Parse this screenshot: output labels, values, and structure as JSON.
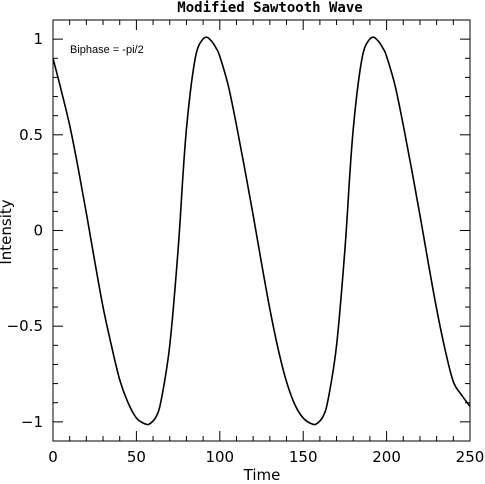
{
  "chart_data": {
    "type": "line",
    "title": "Modified Sawtooth Wave",
    "xlabel": "Time",
    "ylabel": "Intensity",
    "xlim": [
      0,
      250
    ],
    "ylim": [
      -1.1,
      1.1
    ],
    "xticks": [
      0,
      50,
      100,
      150,
      200,
      250
    ],
    "xtick_labels": [
      "0",
      "50",
      "100",
      "150",
      "200",
      "250"
    ],
    "yticks": [
      1,
      0.5,
      0,
      -0.5,
      -1
    ],
    "ytick_labels": [
      "1",
      "0.5",
      "0",
      "−0.5",
      "−1"
    ],
    "annotation": "Biphase = -pi/2",
    "grid": false,
    "series": [
      {
        "color": "#000000",
        "x": [
          0,
          5,
          10,
          15,
          20,
          25,
          30,
          35,
          40,
          45,
          50,
          55,
          58,
          62,
          65,
          70,
          75,
          78,
          80,
          83,
          86,
          89,
          92,
          95,
          98,
          100,
          105,
          110,
          115,
          120,
          125,
          130,
          135,
          140,
          145,
          150,
          155,
          158,
          162,
          165,
          170,
          175,
          178,
          180,
          183,
          186,
          189,
          192,
          195,
          198,
          200,
          205,
          210,
          215,
          220,
          225,
          230,
          235,
          240,
          245,
          250
        ],
        "y": [
          0.9,
          0.73,
          0.55,
          0.33,
          0.09,
          -0.16,
          -0.4,
          -0.6,
          -0.78,
          -0.9,
          -0.98,
          -1.01,
          -1.01,
          -0.97,
          -0.88,
          -0.6,
          -0.1,
          0.3,
          0.53,
          0.77,
          0.93,
          0.99,
          1.01,
          0.99,
          0.95,
          0.91,
          0.76,
          0.55,
          0.32,
          0.08,
          -0.17,
          -0.41,
          -0.62,
          -0.79,
          -0.91,
          -0.98,
          -1.01,
          -1.01,
          -0.97,
          -0.88,
          -0.6,
          -0.1,
          0.3,
          0.53,
          0.77,
          0.93,
          0.99,
          1.01,
          0.99,
          0.95,
          0.91,
          0.76,
          0.55,
          0.32,
          0.08,
          -0.17,
          -0.41,
          -0.62,
          -0.79,
          -0.86,
          -0.92
        ]
      }
    ]
  }
}
